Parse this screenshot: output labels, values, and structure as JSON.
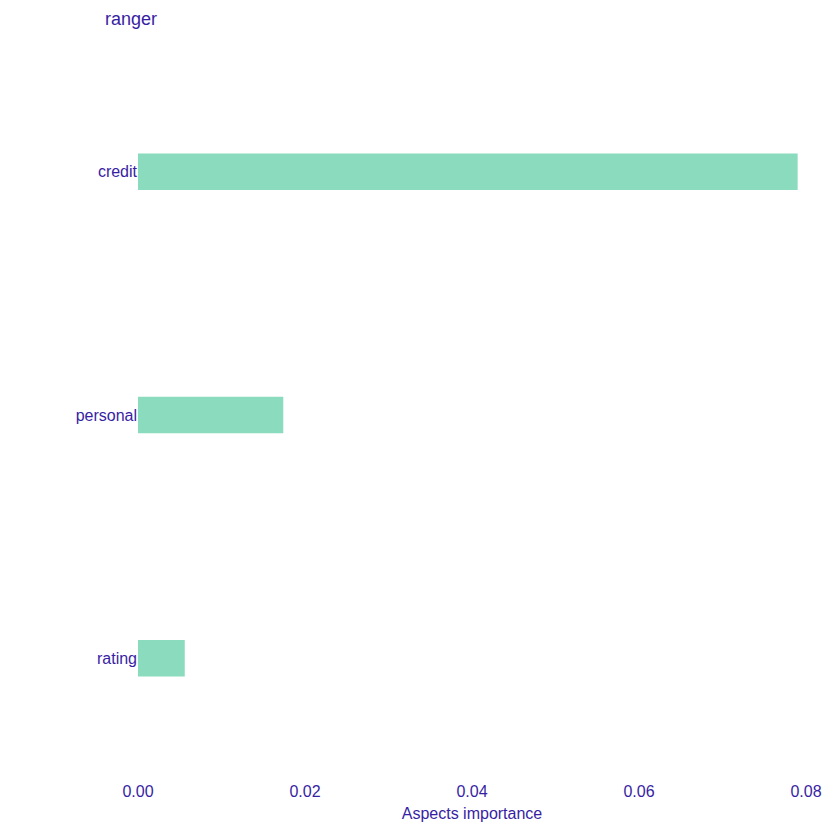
{
  "chart_data": {
    "type": "bar",
    "orientation": "horizontal",
    "title": "ranger",
    "xlabel": "Aspects importance",
    "categories": [
      "credit",
      "personal",
      "rating"
    ],
    "values": [
      0.079,
      0.0174,
      0.0056
    ],
    "color": "#8bdcbe",
    "xlim": [
      0,
      0.08
    ],
    "xticks": [
      {
        "value": 0,
        "label": "0.00"
      },
      {
        "value": 0.02,
        "label": "0.02"
      },
      {
        "value": 0.04,
        "label": "0.04"
      },
      {
        "value": 0.06,
        "label": "0.06"
      },
      {
        "value": 0.08,
        "label": "0.08"
      }
    ],
    "grid": false
  }
}
